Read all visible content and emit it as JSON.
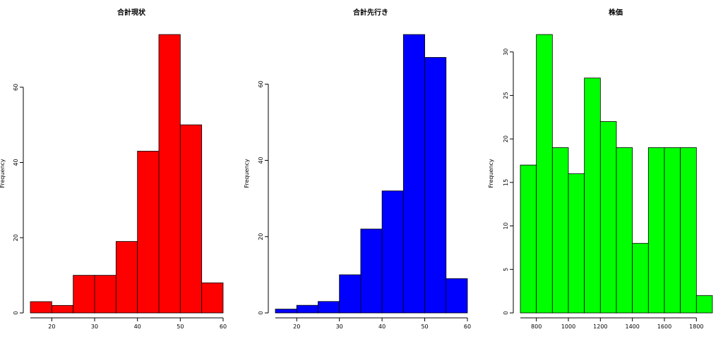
{
  "chart_data": [
    {
      "type": "bar",
      "title": "合計現状",
      "xlabel": "",
      "ylabel": "Frequency",
      "color": "#ff0000",
      "bins": [
        [
          15,
          20
        ],
        [
          20,
          25
        ],
        [
          25,
          30
        ],
        [
          30,
          35
        ],
        [
          35,
          40
        ],
        [
          40,
          45
        ],
        [
          45,
          50
        ],
        [
          50,
          55
        ],
        [
          55,
          60
        ]
      ],
      "values": [
        3,
        2,
        10,
        10,
        19,
        43,
        74,
        50,
        8
      ],
      "xticks": [
        "20",
        "30",
        "40",
        "50",
        "60"
      ],
      "yticks": [
        "0",
        "20",
        "40",
        "60"
      ],
      "xlim": [
        15,
        60
      ],
      "ylim": [
        0,
        74
      ]
    },
    {
      "type": "bar",
      "title": "合計先行き",
      "xlabel": "",
      "ylabel": "Frequency",
      "color": "#0000ff",
      "bins": [
        [
          15,
          20
        ],
        [
          20,
          25
        ],
        [
          25,
          30
        ],
        [
          30,
          35
        ],
        [
          35,
          40
        ],
        [
          40,
          45
        ],
        [
          45,
          50
        ],
        [
          50,
          55
        ],
        [
          55,
          60
        ]
      ],
      "values": [
        1,
        2,
        3,
        10,
        22,
        32,
        73,
        67,
        9
      ],
      "xticks": [
        "20",
        "30",
        "40",
        "50",
        "60"
      ],
      "yticks": [
        "0",
        "20",
        "40",
        "60"
      ],
      "xlim": [
        15,
        60
      ],
      "ylim": [
        0,
        73
      ]
    },
    {
      "type": "bar",
      "title": "株価",
      "xlabel": "",
      "ylabel": "Frequency",
      "color": "#00ff00",
      "bins": [
        [
          700,
          800
        ],
        [
          800,
          900
        ],
        [
          900,
          1000
        ],
        [
          1000,
          1100
        ],
        [
          1100,
          1200
        ],
        [
          1200,
          1300
        ],
        [
          1300,
          1400
        ],
        [
          1400,
          1500
        ],
        [
          1500,
          1600
        ],
        [
          1600,
          1700
        ],
        [
          1700,
          1800
        ],
        [
          1800,
          1900
        ]
      ],
      "values": [
        17,
        32,
        19,
        16,
        27,
        22,
        19,
        8,
        19,
        19,
        19,
        2
      ],
      "xticks": [
        "800",
        "1000",
        "1200",
        "1400",
        "1600",
        "1800"
      ],
      "yticks": [
        "0",
        "5",
        "10",
        "15",
        "20",
        "25",
        "30"
      ],
      "xlim": [
        700,
        1900
      ],
      "ylim": [
        0,
        32
      ]
    }
  ]
}
